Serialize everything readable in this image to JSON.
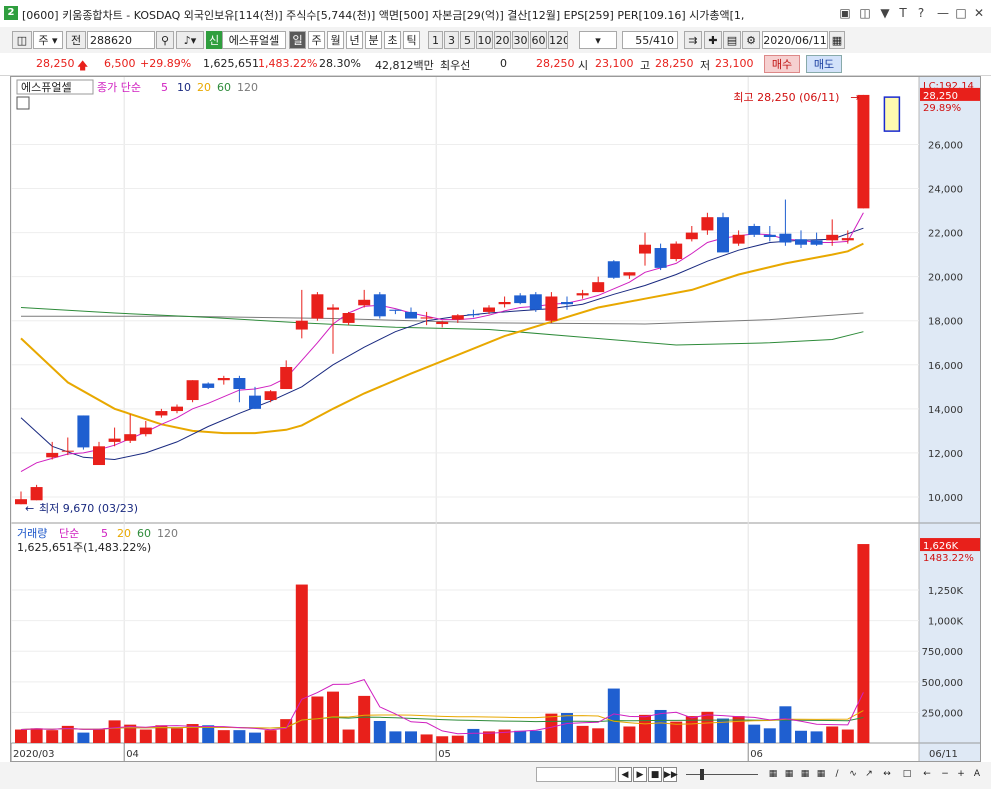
{
  "window": {
    "badge": "2",
    "title": "[0600] 키움종합차트 - KOSDAQ 외국인보유[114(천)] 주식수[5,744(천)] 액면[500] 자본금[29(억)] 결산[12월] EPS[259] PER[109.16] 시가총액[1,"
  },
  "toolbar": {
    "market": "주",
    "prev": "전",
    "code": "288620",
    "new_tag": "신",
    "stock_name": "에스퓨얼셀",
    "periods": [
      "일",
      "주",
      "월",
      "년",
      "분",
      "초",
      "틱"
    ],
    "active_period": "일",
    "intervals": [
      "1",
      "3",
      "5",
      "10",
      "20",
      "30",
      "60",
      "120"
    ],
    "count": "55",
    "total": "/410",
    "date": "2020/06/11"
  },
  "quote": {
    "price": "28,250",
    "change": "6,500",
    "change_pct": "+29.89%",
    "volume": "1,625,651",
    "volume_ratio": "1,483.22%",
    "turnover": "28.30%",
    "amount": "42,812백만",
    "best_bid_label": "최우선",
    "best_bid": "0",
    "best_ask": "28,250",
    "open_label": "시",
    "open": "23,100",
    "high_label": "고",
    "high": "28,250",
    "low_label": "저",
    "low": "23,100",
    "buy_label": "매수",
    "sell_label": "매도"
  },
  "price_panel": {
    "legend_name": "에스퓨얼셀",
    "legend_ma_label": "종가 단순",
    "ma_periods": [
      "5",
      "10",
      "20",
      "60",
      "120"
    ],
    "high_label": "최고 28,250 (06/11)",
    "low_label": "최저 9,670 (03/23)",
    "lc_label": "LC:192.14",
    "last_price_tag": "28,250",
    "last_pct_tag": "29.89%",
    "y_ticks": [
      "26,000",
      "24,000",
      "22,000",
      "20,000",
      "18,000",
      "16,000",
      "14,000",
      "12,000",
      "10,000"
    ]
  },
  "volume_panel": {
    "legend_name": "거래량",
    "legend_ma_label": "단순",
    "ma_periods": [
      "5",
      "20",
      "60",
      "120"
    ],
    "last_volume_text": "1,625,651주(1,483.22%)",
    "last_tag": "1,626K",
    "last_pct_tag": "1483.22%",
    "y_ticks": [
      "1,250K",
      "1,000K",
      "750,000",
      "500,000",
      "250,000"
    ]
  },
  "x_axis": {
    "labels": [
      "2020/03",
      "04",
      "05",
      "06"
    ],
    "last_date": "06/11"
  },
  "colors": {
    "up": "#e8201b",
    "down": "#1f5fd0",
    "ma5": "#d020c0",
    "ma10": "#1a2a80",
    "ma20": "#e8a800",
    "ma60": "#2e8b3a",
    "ma120": "#7a7a7a"
  },
  "chart_data": {
    "type": "candlestick",
    "dates_visible": [
      "2020/03",
      "04",
      "05",
      "06"
    ],
    "candles": [
      {
        "o": 9670,
        "h": 10250,
        "l": 9670,
        "c": 9900
      },
      {
        "o": 9850,
        "h": 10550,
        "l": 9850,
        "c": 10450
      },
      {
        "o": 11800,
        "h": 12500,
        "l": 11700,
        "c": 12000
      },
      {
        "o": 12100,
        "h": 12700,
        "l": 11900,
        "c": 12100
      },
      {
        "o": 13700,
        "h": 13700,
        "l": 12150,
        "c": 12250
      },
      {
        "o": 11450,
        "h": 12500,
        "l": 11450,
        "c": 12300
      },
      {
        "o": 12500,
        "h": 13150,
        "l": 12300,
        "c": 12650
      },
      {
        "o": 12550,
        "h": 13750,
        "l": 12450,
        "c": 12850
      },
      {
        "o": 12850,
        "h": 13450,
        "l": 12750,
        "c": 13150
      },
      {
        "o": 13700,
        "h": 14000,
        "l": 13600,
        "c": 13900
      },
      {
        "o": 13900,
        "h": 14200,
        "l": 13800,
        "c": 14100
      },
      {
        "o": 14400,
        "h": 15300,
        "l": 14300,
        "c": 15300
      },
      {
        "o": 15150,
        "h": 15200,
        "l": 14900,
        "c": 14950
      },
      {
        "o": 15300,
        "h": 15500,
        "l": 15100,
        "c": 15400
      },
      {
        "o": 15400,
        "h": 15500,
        "l": 14300,
        "c": 14900
      },
      {
        "o": 14600,
        "h": 15000,
        "l": 14000,
        "c": 14000
      },
      {
        "o": 14400,
        "h": 14850,
        "l": 14300,
        "c": 14800
      },
      {
        "o": 14900,
        "h": 16200,
        "l": 14900,
        "c": 15900
      },
      {
        "o": 17600,
        "h": 19400,
        "l": 17200,
        "c": 18000
      },
      {
        "o": 18100,
        "h": 19300,
        "l": 18000,
        "c": 19200
      },
      {
        "o": 18500,
        "h": 18750,
        "l": 16500,
        "c": 18600
      },
      {
        "o": 17900,
        "h": 18400,
        "l": 17800,
        "c": 18350
      },
      {
        "o": 18700,
        "h": 19400,
        "l": 18600,
        "c": 18950
      },
      {
        "o": 19200,
        "h": 19300,
        "l": 18100,
        "c": 18200
      },
      {
        "o": 18500,
        "h": 18500,
        "l": 18300,
        "c": 18450
      },
      {
        "o": 18400,
        "h": 18600,
        "l": 18100,
        "c": 18100
      },
      {
        "o": 18100,
        "h": 18400,
        "l": 17800,
        "c": 18150
      },
      {
        "o": 17850,
        "h": 18000,
        "l": 17700,
        "c": 17950
      },
      {
        "o": 18050,
        "h": 18300,
        "l": 17900,
        "c": 18250
      },
      {
        "o": 18300,
        "h": 18500,
        "l": 18150,
        "c": 18250
      },
      {
        "o": 18400,
        "h": 18700,
        "l": 18300,
        "c": 18600
      },
      {
        "o": 18750,
        "h": 19100,
        "l": 18600,
        "c": 18850
      },
      {
        "o": 19150,
        "h": 19250,
        "l": 18750,
        "c": 18800
      },
      {
        "o": 19200,
        "h": 19300,
        "l": 18400,
        "c": 18500
      },
      {
        "o": 18000,
        "h": 19300,
        "l": 17900,
        "c": 19100
      },
      {
        "o": 18850,
        "h": 19100,
        "l": 18500,
        "c": 18750
      },
      {
        "o": 19150,
        "h": 19400,
        "l": 19000,
        "c": 19250
      },
      {
        "o": 19300,
        "h": 20000,
        "l": 19300,
        "c": 19750
      },
      {
        "o": 20700,
        "h": 20750,
        "l": 19900,
        "c": 19950
      },
      {
        "o": 20050,
        "h": 20200,
        "l": 19900,
        "c": 20200
      },
      {
        "o": 21050,
        "h": 22000,
        "l": 20500,
        "c": 21450
      },
      {
        "o": 21300,
        "h": 21500,
        "l": 20300,
        "c": 20400
      },
      {
        "o": 20800,
        "h": 21600,
        "l": 20700,
        "c": 21500
      },
      {
        "o": 21700,
        "h": 22300,
        "l": 21600,
        "c": 22000
      },
      {
        "o": 22100,
        "h": 22900,
        "l": 21900,
        "c": 22700
      },
      {
        "o": 22700,
        "h": 22900,
        "l": 21100,
        "c": 21100
      },
      {
        "o": 21500,
        "h": 22100,
        "l": 21400,
        "c": 21900
      },
      {
        "o": 22300,
        "h": 22400,
        "l": 21800,
        "c": 21900
      },
      {
        "o": 21900,
        "h": 22300,
        "l": 21600,
        "c": 21800
      },
      {
        "o": 21950,
        "h": 23500,
        "l": 21400,
        "c": 21550
      },
      {
        "o": 21700,
        "h": 22100,
        "l": 21300,
        "c": 21450
      },
      {
        "o": 21650,
        "h": 22000,
        "l": 21400,
        "c": 21450
      },
      {
        "o": 21650,
        "h": 22600,
        "l": 21400,
        "c": 21900
      },
      {
        "o": 21650,
        "h": 22100,
        "l": 21500,
        "c": 21750
      },
      {
        "o": 23100,
        "h": 28250,
        "l": 23100,
        "c": 28250
      }
    ],
    "volume": [
      110000,
      120000,
      105000,
      140000,
      85000,
      110000,
      185000,
      150000,
      110000,
      145000,
      120000,
      155000,
      145000,
      105000,
      105000,
      85000,
      105000,
      195000,
      1295000,
      380000,
      420000,
      110000,
      385000,
      180000,
      95000,
      95000,
      70000,
      55000,
      60000,
      115000,
      95000,
      110000,
      100000,
      100000,
      240000,
      245000,
      140000,
      120000,
      445000,
      135000,
      230000,
      270000,
      175000,
      220000,
      255000,
      200000,
      220000,
      150000,
      120000,
      300000,
      100000,
      95000,
      135000,
      110000,
      1626000
    ],
    "ma_lines": {
      "ma5": [
        [
          0,
          11150
        ],
        [
          1,
          11550
        ],
        [
          2,
          11750
        ],
        [
          3,
          11950
        ],
        [
          4,
          12000
        ],
        [
          5,
          12150
        ],
        [
          6,
          12350
        ],
        [
          7,
          12650
        ],
        [
          8,
          12950
        ],
        [
          9,
          13300
        ],
        [
          10,
          13600
        ],
        [
          11,
          14000
        ],
        [
          12,
          14250
        ],
        [
          13,
          14550
        ],
        [
          14,
          14850
        ],
        [
          15,
          14900
        ],
        [
          16,
          15050
        ],
        [
          17,
          15400
        ],
        [
          18,
          16200
        ],
        [
          19,
          17000
        ],
        [
          20,
          17850
        ],
        [
          21,
          18350
        ],
        [
          22,
          18650
        ],
        [
          23,
          18700
        ],
        [
          24,
          18550
        ],
        [
          25,
          18350
        ],
        [
          26,
          18200
        ],
        [
          27,
          18050
        ],
        [
          28,
          18050
        ],
        [
          29,
          18100
        ],
        [
          30,
          18250
        ],
        [
          31,
          18450
        ],
        [
          32,
          18600
        ],
        [
          33,
          18650
        ],
        [
          34,
          18750
        ],
        [
          35,
          18800
        ],
        [
          36,
          18950
        ],
        [
          37,
          19150
        ],
        [
          38,
          19450
        ],
        [
          39,
          19750
        ],
        [
          40,
          20200
        ],
        [
          41,
          20400
        ],
        [
          42,
          20600
        ],
        [
          43,
          21050
        ],
        [
          44,
          21550
        ],
        [
          45,
          21750
        ],
        [
          46,
          21850
        ],
        [
          47,
          21950
        ],
        [
          48,
          21900
        ],
        [
          49,
          21700
        ],
        [
          50,
          21650
        ],
        [
          51,
          21550
        ],
        [
          52,
          21550
        ],
        [
          53,
          21600
        ],
        [
          54,
          22900
        ]
      ],
      "ma10": [
        [
          0,
          13600
        ],
        [
          2,
          12300
        ],
        [
          4,
          11800
        ],
        [
          6,
          11700
        ],
        [
          8,
          12000
        ],
        [
          10,
          12500
        ],
        [
          12,
          13200
        ],
        [
          14,
          13800
        ],
        [
          16,
          14350
        ],
        [
          18,
          15000
        ],
        [
          20,
          16000
        ],
        [
          22,
          16800
        ],
        [
          24,
          17500
        ],
        [
          26,
          18000
        ],
        [
          28,
          18200
        ],
        [
          30,
          18350
        ],
        [
          32,
          18450
        ],
        [
          34,
          18550
        ],
        [
          36,
          18750
        ],
        [
          38,
          19200
        ],
        [
          40,
          19600
        ],
        [
          42,
          20100
        ],
        [
          44,
          20700
        ],
        [
          46,
          21200
        ],
        [
          48,
          21550
        ],
        [
          50,
          21650
        ],
        [
          52,
          21700
        ],
        [
          54,
          22200
        ]
      ],
      "ma20": [
        [
          0,
          17200
        ],
        [
          3,
          15200
        ],
        [
          6,
          14000
        ],
        [
          9,
          13300
        ],
        [
          11,
          13000
        ],
        [
          13,
          12900
        ],
        [
          15,
          12900
        ],
        [
          17,
          13050
        ],
        [
          18,
          13250
        ],
        [
          20,
          14000
        ],
        [
          22,
          14700
        ],
        [
          25,
          15600
        ],
        [
          28,
          16450
        ],
        [
          31,
          17300
        ],
        [
          34,
          17950
        ],
        [
          37,
          18600
        ],
        [
          40,
          19000
        ],
        [
          43,
          19400
        ],
        [
          46,
          20100
        ],
        [
          49,
          20600
        ],
        [
          52,
          21000
        ],
        [
          53,
          21150
        ],
        [
          54,
          21500
        ]
      ],
      "ma60": [
        [
          0,
          18600
        ],
        [
          6,
          18350
        ],
        [
          12,
          18150
        ],
        [
          18,
          17900
        ],
        [
          24,
          17700
        ],
        [
          30,
          17600
        ],
        [
          36,
          17250
        ],
        [
          42,
          16900
        ],
        [
          48,
          17000
        ],
        [
          52,
          17150
        ],
        [
          54,
          17500
        ]
      ],
      "ma120": [
        [
          0,
          18200
        ],
        [
          10,
          18200
        ],
        [
          20,
          18100
        ],
        [
          30,
          17900
        ],
        [
          40,
          17850
        ],
        [
          48,
          18050
        ],
        [
          54,
          18350
        ]
      ]
    }
  }
}
